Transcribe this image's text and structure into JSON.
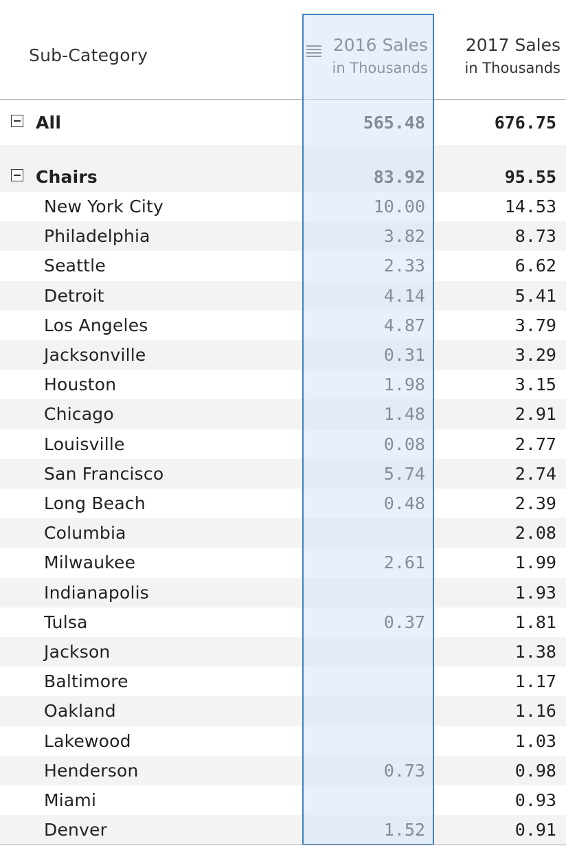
{
  "header": {
    "category_label": "Sub-Category",
    "col_2016_line1": "2016 Sales",
    "col_2016_line2": "in Thousands",
    "col_2017_line1": "2017 Sales",
    "col_2017_line2": "in Thousands"
  },
  "colors": {
    "selection_border": "#3d82c4",
    "selection_fill": "#d6e6f7",
    "stripe": "#f3f3f3"
  },
  "rows": [
    {
      "name": "All",
      "v2016": "565.48",
      "v2017": "676.75",
      "bold": true,
      "expandable": true
    },
    {
      "name": "Chairs",
      "v2016": "83.92",
      "v2017": "95.55",
      "bold": true,
      "expandable": true
    },
    {
      "name": "New York City",
      "v2016": "10.00",
      "v2017": "14.53"
    },
    {
      "name": "Philadelphia",
      "v2016": "3.82",
      "v2017": "8.73"
    },
    {
      "name": "Seattle",
      "v2016": "2.33",
      "v2017": "6.62"
    },
    {
      "name": "Detroit",
      "v2016": "4.14",
      "v2017": "5.41"
    },
    {
      "name": "Los Angeles",
      "v2016": "4.87",
      "v2017": "3.79"
    },
    {
      "name": "Jacksonville",
      "v2016": "0.31",
      "v2017": "3.29"
    },
    {
      "name": "Houston",
      "v2016": "1.98",
      "v2017": "3.15"
    },
    {
      "name": "Chicago",
      "v2016": "1.48",
      "v2017": "2.91"
    },
    {
      "name": "Louisville",
      "v2016": "0.08",
      "v2017": "2.77"
    },
    {
      "name": "San Francisco",
      "v2016": "5.74",
      "v2017": "2.74"
    },
    {
      "name": "Long Beach",
      "v2016": "0.48",
      "v2017": "2.39"
    },
    {
      "name": "Columbia",
      "v2016": "",
      "v2017": "2.08"
    },
    {
      "name": "Milwaukee",
      "v2016": "2.61",
      "v2017": "1.99"
    },
    {
      "name": "Indianapolis",
      "v2016": "",
      "v2017": "1.93"
    },
    {
      "name": "Tulsa",
      "v2016": "0.37",
      "v2017": "1.81"
    },
    {
      "name": "Jackson",
      "v2016": "",
      "v2017": "1.38"
    },
    {
      "name": "Baltimore",
      "v2016": "",
      "v2017": "1.17"
    },
    {
      "name": "Oakland",
      "v2016": "",
      "v2017": "1.16"
    },
    {
      "name": "Lakewood",
      "v2016": "",
      "v2017": "1.03"
    },
    {
      "name": "Henderson",
      "v2016": "0.73",
      "v2017": "0.98"
    },
    {
      "name": "Miami",
      "v2016": "",
      "v2017": "0.93"
    },
    {
      "name": "Denver",
      "v2016": "1.52",
      "v2017": "0.91"
    }
  ]
}
